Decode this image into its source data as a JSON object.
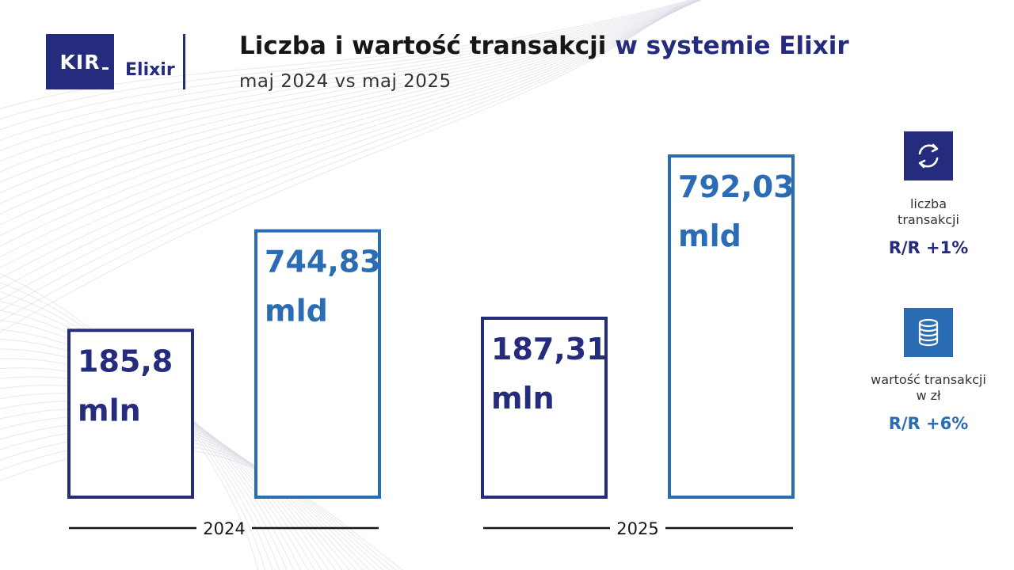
{
  "header": {
    "logo_kir": "KIR",
    "logo_elixir": "Elixir",
    "title_main": "Liczba i wartość transakcji",
    "title_accent": "w systemie Elixir",
    "subtitle": "maj 2024 vs maj 2025"
  },
  "colors": {
    "navy": "#252b7d",
    "blue": "#2a6db5"
  },
  "chart_data": {
    "type": "bar",
    "categories": [
      "2024",
      "2025"
    ],
    "series": [
      {
        "name": "liczba transakcji",
        "color": "#252b7d",
        "values": [
          185.8,
          187.31
        ],
        "unit": "mln",
        "labels": [
          "185,8",
          "187,31"
        ]
      },
      {
        "name": "wartość transakcji w zł",
        "color": "#2a6db5",
        "values": [
          744.83,
          792.03
        ],
        "unit": "mld",
        "labels": [
          "744,83",
          "792,03"
        ]
      }
    ],
    "grid": false
  },
  "legend": {
    "count": {
      "icon": "refresh-arrows-icon",
      "label_line1": "liczba",
      "label_line2": "transakcji",
      "change": "R/R +1%"
    },
    "value": {
      "icon": "coin-stack-icon",
      "label_line1": "wartość transakcji",
      "label_line2": "w zł",
      "change": "R/R +6%"
    }
  }
}
